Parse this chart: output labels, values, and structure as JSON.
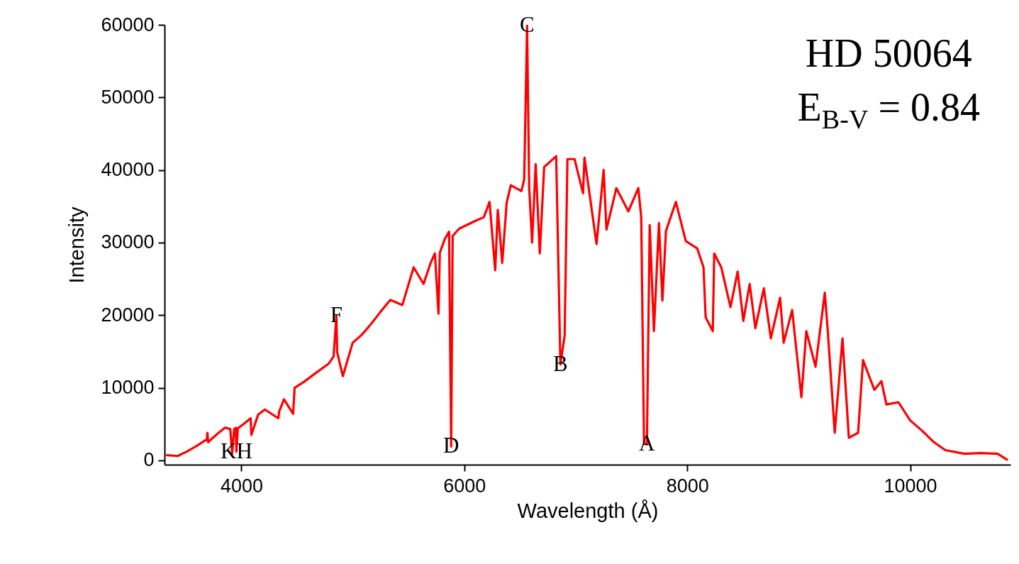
{
  "chart_data": {
    "type": "line",
    "xlabel": "Wavelength (Å)",
    "ylabel": "Intensity",
    "xlim": [
      3310,
      10900
    ],
    "ylim": [
      -600,
      60000
    ],
    "xticks": [
      4000,
      6000,
      8000,
      10000
    ],
    "yticks": [
      0,
      10000,
      20000,
      30000,
      40000,
      50000,
      60000
    ],
    "grid": false,
    "marker": "none",
    "line_style": "solid",
    "annotations": [
      "HD 50064",
      "E$_{B-V}$ = 0.84",
      {
        "text": "C",
        "x": 6563,
        "y": 59900
      },
      {
        "text": "F",
        "x": 4852,
        "y": 19900
      },
      {
        "text": "B",
        "x": 6862,
        "y": 13200
      },
      {
        "text": "D",
        "x": 5882,
        "y": 1900
      },
      {
        "text": "A",
        "x": 7638,
        "y": 2200
      },
      {
        "text": "KH",
        "x": 3955,
        "y": 1200
      }
    ],
    "series": [
      {
        "color": "#ff0000",
        "x": [
          3332,
          3428,
          3510,
          3600,
          3690,
          3695,
          3701,
          3780,
          3854,
          3900,
          3917,
          3935,
          3949,
          3955,
          3968,
          4020,
          4083,
          4089,
          4150,
          4210,
          4331,
          4340,
          4382,
          4464,
          4477,
          4560,
          4655,
          4782,
          4827,
          4852,
          4859,
          4910,
          4998,
          5080,
          5164,
          5250,
          5336,
          5444,
          5545,
          5634,
          5700,
          5736,
          5768,
          5780,
          5825,
          5863,
          5882,
          5895,
          5952,
          5965,
          6100,
          6175,
          6226,
          6277,
          6300,
          6340,
          6380,
          6417,
          6512,
          6537,
          6563,
          6582,
          6608,
          6640,
          6677,
          6716,
          6824,
          6862,
          6900,
          6925,
          6989,
          7065,
          7078,
          7186,
          7250,
          7275,
          7364,
          7472,
          7561,
          7587,
          7612,
          7638,
          7663,
          7701,
          7746,
          7777,
          7809,
          7898,
          7987,
          8089,
          8146,
          8165,
          8229,
          8242,
          8305,
          8388,
          8452,
          8503,
          8560,
          8611,
          8687,
          8750,
          8833,
          8865,
          8941,
          9024,
          9068,
          9151,
          9234,
          9259,
          9323,
          9393,
          9450,
          9533,
          9577,
          9679,
          9742,
          9787,
          9895,
          10000,
          10105,
          10213,
          10315,
          10487,
          10633,
          10785,
          10868
        ],
        "values": [
          700,
          600,
          1200,
          2000,
          2900,
          3800,
          2500,
          3600,
          4500,
          4300,
          900,
          4300,
          4500,
          1200,
          4400,
          5000,
          5800,
          3500,
          6300,
          7000,
          5800,
          6800,
          8400,
          6400,
          10000,
          10800,
          11900,
          13300,
          14300,
          19900,
          14900,
          11600,
          16200,
          17300,
          18800,
          20500,
          22100,
          21400,
          26600,
          24300,
          27300,
          28500,
          20200,
          28600,
          30500,
          31500,
          1900,
          30900,
          31900,
          32000,
          33000,
          33500,
          35600,
          26200,
          34500,
          27200,
          35500,
          37900,
          37100,
          38700,
          59900,
          37500,
          30000,
          40800,
          28500,
          40400,
          41900,
          13200,
          17200,
          41500,
          41500,
          36800,
          41700,
          29800,
          40000,
          31800,
          37500,
          34300,
          37500,
          33500,
          2400,
          2200,
          32400,
          17800,
          32700,
          22000,
          31600,
          35600,
          30200,
          29200,
          26600,
          19700,
          17800,
          28500,
          26600,
          21100,
          26000,
          19200,
          24300,
          18200,
          23700,
          16800,
          22400,
          16200,
          20700,
          8700,
          17800,
          12900,
          23100,
          18200,
          3800,
          16800,
          3100,
          3800,
          13800,
          9700,
          10900,
          7700,
          8000,
          5500,
          4100,
          2500,
          1400,
          900,
          1000,
          900,
          100
        ]
      }
    ]
  }
}
